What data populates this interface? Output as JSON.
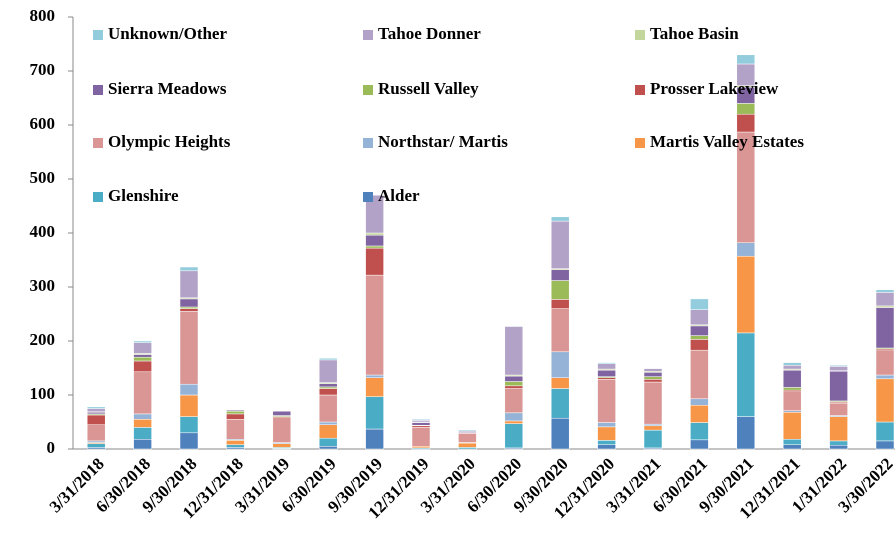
{
  "chart_data": {
    "type": "stacked_bar",
    "categories": [
      "3/31/2018",
      "6/30/2018",
      "9/30/2018",
      "12/31/2018",
      "3/31/2019",
      "6/30/2019",
      "9/30/2019",
      "12/31/2019",
      "3/31/2020",
      "6/30/2020",
      "9/30/2020",
      "12/31/2020",
      "3/31/2021",
      "6/30/2021",
      "9/30/2021",
      "12/31/2021",
      "1/31/2022",
      "3/30/2022"
    ],
    "series": [
      {
        "name": "Alder",
        "color": "#4f81bd",
        "values": [
          3,
          18,
          30,
          3,
          1,
          5,
          37,
          0,
          0,
          2,
          57,
          8,
          2,
          17,
          60,
          8,
          7,
          15
        ]
      },
      {
        "name": "Glenshire",
        "color": "#4bacc6",
        "values": [
          7,
          22,
          30,
          5,
          2,
          15,
          60,
          2,
          3,
          45,
          55,
          8,
          33,
          32,
          155,
          10,
          8,
          35
        ]
      },
      {
        "name": "Martis Valley Estates",
        "color": "#f79646",
        "values": [
          2,
          15,
          40,
          8,
          7,
          25,
          35,
          3,
          8,
          5,
          20,
          25,
          8,
          32,
          142,
          50,
          45,
          80
        ]
      },
      {
        "name": "Northstar/ Martis",
        "color": "#95b3d7",
        "values": [
          3,
          10,
          20,
          2,
          2,
          5,
          5,
          0,
          1,
          15,
          48,
          8,
          3,
          12,
          25,
          3,
          2,
          7
        ]
      },
      {
        "name": "Olympic Heights",
        "color": "#d99694",
        "values": [
          30,
          78,
          135,
          37,
          46,
          50,
          185,
          35,
          17,
          45,
          80,
          80,
          78,
          90,
          205,
          35,
          23,
          45
        ]
      },
      {
        "name": "Prosser Lakeview",
        "color": "#c0504d",
        "values": [
          18,
          20,
          5,
          10,
          2,
          12,
          50,
          3,
          1,
          5,
          17,
          3,
          5,
          20,
          33,
          3,
          2,
          3
        ]
      },
      {
        "name": "Russell Valley",
        "color": "#9bbb59",
        "values": [
          2,
          7,
          3,
          5,
          2,
          3,
          4,
          1,
          0,
          8,
          35,
          2,
          5,
          7,
          20,
          5,
          2,
          2
        ]
      },
      {
        "name": "Sierra Meadows",
        "color": "#8064a2",
        "values": [
          3,
          5,
          15,
          2,
          8,
          6,
          20,
          5,
          0,
          10,
          20,
          12,
          8,
          18,
          30,
          32,
          55,
          75
        ]
      },
      {
        "name": "Tahoe Basin",
        "color": "#c3d69b",
        "values": [
          1,
          2,
          2,
          1,
          0,
          2,
          4,
          1,
          0,
          2,
          2,
          2,
          2,
          2,
          3,
          2,
          1,
          3
        ]
      },
      {
        "name": "Tahoe Donner",
        "color": "#b3a2c7",
        "values": [
          6,
          20,
          50,
          0,
          0,
          42,
          70,
          3,
          3,
          90,
          88,
          10,
          5,
          28,
          40,
          7,
          8,
          25
        ]
      },
      {
        "name": "Unknown/Other",
        "color": "#93cddd",
        "values": [
          3,
          3,
          7,
          0,
          0,
          3,
          0,
          2,
          2,
          1,
          8,
          2,
          1,
          20,
          17,
          5,
          2,
          5
        ]
      }
    ],
    "ylim": [
      0,
      800
    ],
    "yticks": [
      0,
      100,
      200,
      300,
      400,
      500,
      600,
      700,
      800
    ],
    "grid": false
  }
}
